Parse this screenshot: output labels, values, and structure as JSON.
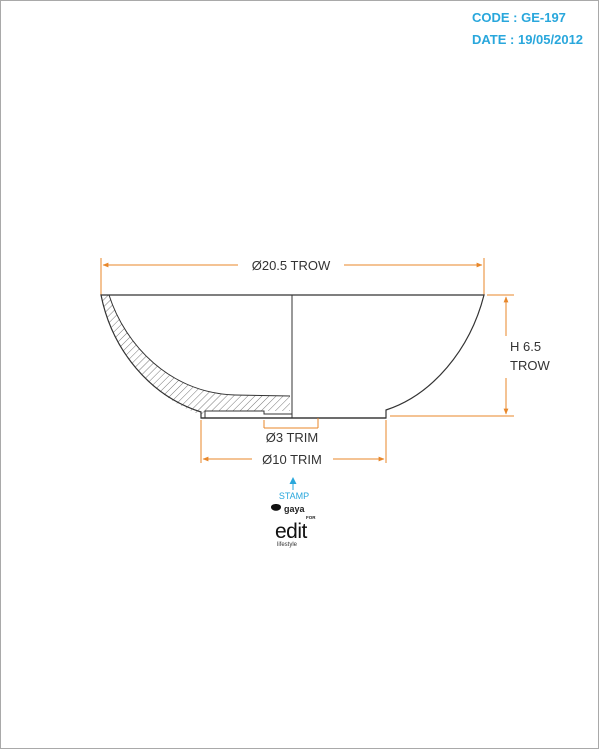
{
  "header": {
    "code_label": "CODE : GE-197",
    "date_label": "DATE : 19/05/2012"
  },
  "dimensions": {
    "top_diameter": "Ø20.5 TROW",
    "height_line1": "H 6.5",
    "height_line2": "TROW",
    "inner_trim": "Ø3 TRIM",
    "base_trim": "Ø10 TRIM"
  },
  "stamp": {
    "label": "STAMP",
    "brand_top": "gaya",
    "brand_for": "FOR",
    "brand_main": "edit",
    "brand_sub": "lifestyle"
  },
  "colors": {
    "accent": "#29a7dc",
    "dimension": "#e8872a",
    "outline": "#333333",
    "hatch": "#555555"
  }
}
